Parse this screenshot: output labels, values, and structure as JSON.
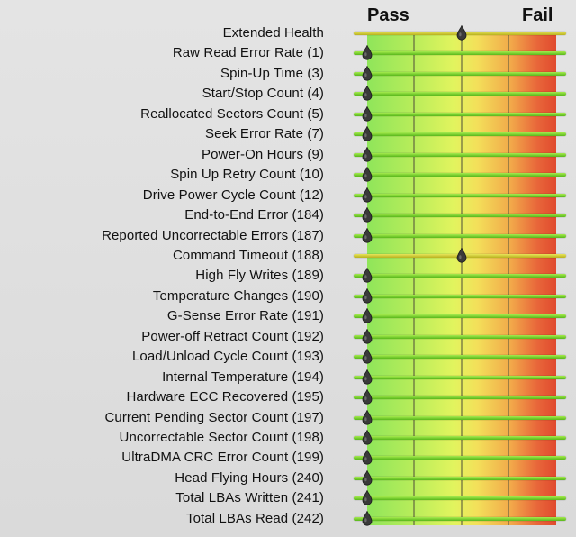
{
  "header": {
    "pass_label": "Pass",
    "fail_label": "Fail"
  },
  "marker_icon": "drop-pin-icon",
  "colors": {
    "ok_bar": "#6fcc2a",
    "warn_bar": "#c8c232",
    "pass": "#8fe55a",
    "fail": "#e04a2e"
  },
  "attributes": [
    {
      "label": "Extended Health",
      "level": 0.5,
      "status": "warn"
    },
    {
      "label": "Raw Read Error Rate (1)",
      "level": 0,
      "status": "ok"
    },
    {
      "label": "Spin-Up Time (3)",
      "level": 0,
      "status": "ok"
    },
    {
      "label": "Start/Stop Count (4)",
      "level": 0,
      "status": "ok"
    },
    {
      "label": "Reallocated Sectors Count (5)",
      "level": 0,
      "status": "ok"
    },
    {
      "label": "Seek Error Rate (7)",
      "level": 0,
      "status": "ok"
    },
    {
      "label": "Power-On Hours (9)",
      "level": 0,
      "status": "ok"
    },
    {
      "label": "Spin Up Retry Count (10)",
      "level": 0,
      "status": "ok"
    },
    {
      "label": "Drive Power Cycle Count (12)",
      "level": 0,
      "status": "ok"
    },
    {
      "label": "End-to-End Error (184)",
      "level": 0,
      "status": "ok"
    },
    {
      "label": "Reported Uncorrectable Errors (187)",
      "level": 0,
      "status": "ok"
    },
    {
      "label": "Command Timeout (188)",
      "level": 0.5,
      "status": "warn"
    },
    {
      "label": "High Fly Writes (189)",
      "level": 0,
      "status": "ok"
    },
    {
      "label": "Temperature Changes (190)",
      "level": 0,
      "status": "ok"
    },
    {
      "label": "G-Sense Error Rate (191)",
      "level": 0,
      "status": "ok"
    },
    {
      "label": "Power-off Retract Count (192)",
      "level": 0,
      "status": "ok"
    },
    {
      "label": "Load/Unload Cycle Count (193)",
      "level": 0,
      "status": "ok"
    },
    {
      "label": "Internal Temperature (194)",
      "level": 0,
      "status": "ok"
    },
    {
      "label": "Hardware ECC Recovered (195)",
      "level": 0,
      "status": "ok"
    },
    {
      "label": "Current Pending Sector Count (197)",
      "level": 0,
      "status": "ok"
    },
    {
      "label": "Uncorrectable Sector Count (198)",
      "level": 0,
      "status": "ok"
    },
    {
      "label": "UltraDMA CRC Error Count (199)",
      "level": 0,
      "status": "ok"
    },
    {
      "label": "Head Flying Hours (240)",
      "level": 0,
      "status": "ok"
    },
    {
      "label": "Total LBAs Written (241)",
      "level": 0,
      "status": "ok"
    },
    {
      "label": "Total LBAs Read (242)",
      "level": 0,
      "status": "ok"
    }
  ]
}
